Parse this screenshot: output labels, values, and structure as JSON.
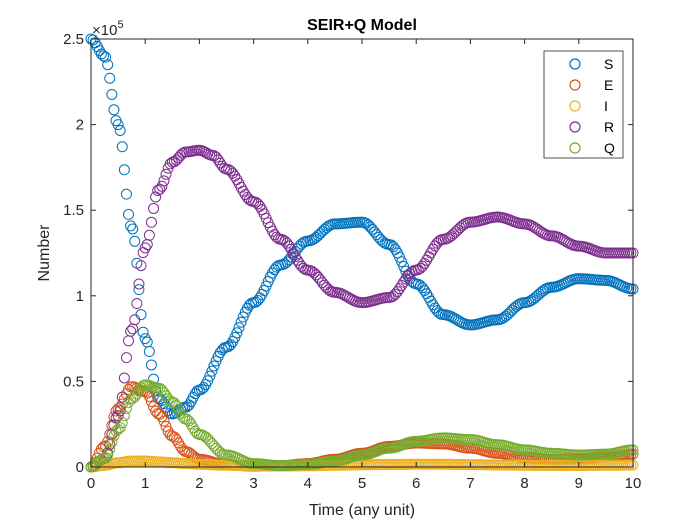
{
  "chart_data": {
    "type": "scatter",
    "title": "SEIR+Q Model",
    "xlabel": "Time (any unit)",
    "ylabel": "Number",
    "xlim": [
      0,
      10
    ],
    "ylim": [
      0,
      250000
    ],
    "xticks": [
      0,
      1,
      2,
      3,
      4,
      5,
      6,
      7,
      8,
      9,
      10
    ],
    "yticks": [
      0,
      50000,
      100000,
      150000,
      200000,
      250000
    ],
    "ytick_labels": [
      "0",
      "0.5",
      "1",
      "1.5",
      "2",
      "2.5"
    ],
    "y_exponent_label": "×10",
    "y_exponent_power": "5",
    "marker": "circle-open",
    "grid": false,
    "legend_position": "top-right",
    "series": [
      {
        "name": "S",
        "color": "#0072BD",
        "x": [
          0,
          0.25,
          0.5,
          0.75,
          1.0,
          1.25,
          1.5,
          1.75,
          2.0,
          2.5,
          3.0,
          3.5,
          4.0,
          4.5,
          5.0,
          5.5,
          6.0,
          6.5,
          7.0,
          7.5,
          8.0,
          8.5,
          9.0,
          9.5,
          10.0
        ],
        "y": [
          250000,
          240000,
          200000,
          140000,
          75000,
          40000,
          31000,
          35000,
          45000,
          70000,
          96000,
          118000,
          132000,
          142000,
          143000,
          130000,
          107000,
          89000,
          83000,
          86000,
          96000,
          105000,
          110000,
          109000,
          104000
        ]
      },
      {
        "name": "E",
        "color": "#D95319",
        "x": [
          0,
          0.25,
          0.5,
          0.75,
          1.0,
          1.25,
          1.5,
          1.75,
          2.0,
          2.5,
          3.0,
          3.5,
          4.0,
          4.5,
          5.0,
          5.5,
          6.0,
          6.5,
          7.0,
          7.5,
          8.0,
          8.5,
          9.0,
          9.5,
          10.0
        ],
        "y": [
          0,
          12000,
          34000,
          47000,
          44000,
          31000,
          18000,
          9000,
          4500,
          1200,
          500,
          800,
          2000,
          4500,
          8000,
          12000,
          14000,
          13500,
          11000,
          8000,
          5500,
          4500,
          4800,
          6000,
          7500
        ]
      },
      {
        "name": "I",
        "color": "#EDB120",
        "x": [
          0,
          0.25,
          0.5,
          0.75,
          1.0,
          1.25,
          1.5,
          1.75,
          2.0,
          2.5,
          3.0,
          3.5,
          4.0,
          4.5,
          5.0,
          5.5,
          6.0,
          6.5,
          7.0,
          7.5,
          8.0,
          8.5,
          9.0,
          9.5,
          10.0
        ],
        "y": [
          0,
          1000,
          2500,
          3500,
          3500,
          3000,
          2500,
          2000,
          1600,
          1000,
          700,
          600,
          700,
          1000,
          1300,
          1500,
          1600,
          1600,
          1400,
          1200,
          1000,
          900,
          900,
          1000,
          1100
        ]
      },
      {
        "name": "R",
        "color": "#7E2F8E",
        "x": [
          0,
          0.25,
          0.5,
          0.75,
          1.0,
          1.25,
          1.5,
          1.75,
          2.0,
          2.25,
          2.5,
          3.0,
          3.5,
          4.0,
          4.5,
          5.0,
          5.5,
          6.0,
          6.5,
          7.0,
          7.5,
          8.0,
          8.5,
          9.0,
          9.5,
          10.0
        ],
        "y": [
          0,
          5000,
          30000,
          80000,
          128000,
          162000,
          178000,
          184000,
          185000,
          182000,
          174000,
          155000,
          133000,
          115000,
          102000,
          96000,
          99000,
          115000,
          133000,
          143000,
          146000,
          142000,
          135000,
          129000,
          125000,
          125000
        ]
      },
      {
        "name": "Q",
        "color": "#77AC30",
        "x": [
          0,
          0.25,
          0.5,
          0.75,
          1.0,
          1.25,
          1.5,
          1.75,
          2.0,
          2.5,
          3.0,
          3.5,
          4.0,
          4.5,
          5.0,
          5.5,
          6.0,
          6.5,
          7.0,
          7.5,
          8.0,
          8.5,
          9.0,
          9.5,
          10.0
        ],
        "y": [
          0,
          5000,
          22000,
          40000,
          48000,
          46000,
          38000,
          28000,
          19000,
          7000,
          2000,
          800,
          1500,
          3500,
          7000,
          11000,
          15000,
          17000,
          16000,
          13000,
          10000,
          8000,
          7000,
          7500,
          10000
        ]
      }
    ]
  }
}
